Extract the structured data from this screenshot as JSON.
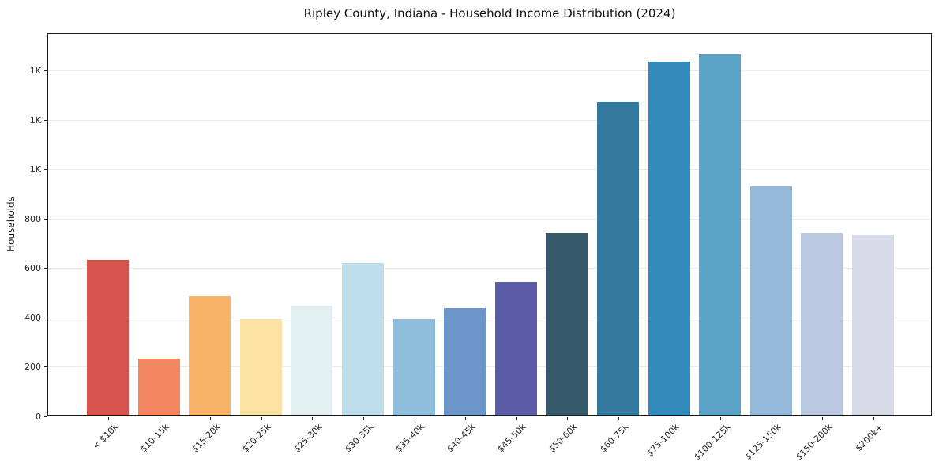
{
  "figure": {
    "title": "Ripley County, Indiana - Household Income Distribution (2024)"
  },
  "chart_data": {
    "type": "bar",
    "title": "Ripley County, Indiana - Household Income Distribution (2024)",
    "xlabel": "",
    "ylabel": "Households",
    "categories": [
      "< $10k",
      "$10-15k",
      "$15-20k",
      "$20-25k",
      "$25-30k",
      "$30-35k",
      "$35-40k",
      "$40-45k",
      "$45-50k",
      "$50-60k",
      "$60-75k",
      "$75-100k",
      "$100-125k",
      "$125-150k",
      "$150-200k",
      "$200k+"
    ],
    "values": [
      634,
      236,
      489,
      396,
      449,
      623,
      396,
      441,
      547,
      745,
      1274,
      1439,
      1467,
      934,
      744,
      737
    ],
    "bar_colors": [
      "#d7534e",
      "#f4875f",
      "#f9b369",
      "#fce3a3",
      "#e3f0f2",
      "#bfdeeb",
      "#8fbedd",
      "#6c95c9",
      "#5c5ba8",
      "#365a6c",
      "#337a9e",
      "#338abd",
      "#5ba3c6",
      "#94b9d8",
      "#bbc8e1",
      "#d7dae7"
    ],
    "ylim": [
      0,
      1552
    ],
    "yticks": {
      "values": [
        0,
        200,
        400,
        600,
        800,
        1000,
        1200,
        1400
      ],
      "labels": [
        "0",
        "200",
        "400",
        "600",
        "800",
        "1K",
        "1K",
        "1K"
      ]
    },
    "grid": "horizontal",
    "legend": "none",
    "background": "#ffffff",
    "frame_color": "#1a1a1a",
    "gridline_color": "#ebebeb",
    "tick_label_color": "#262626"
  }
}
